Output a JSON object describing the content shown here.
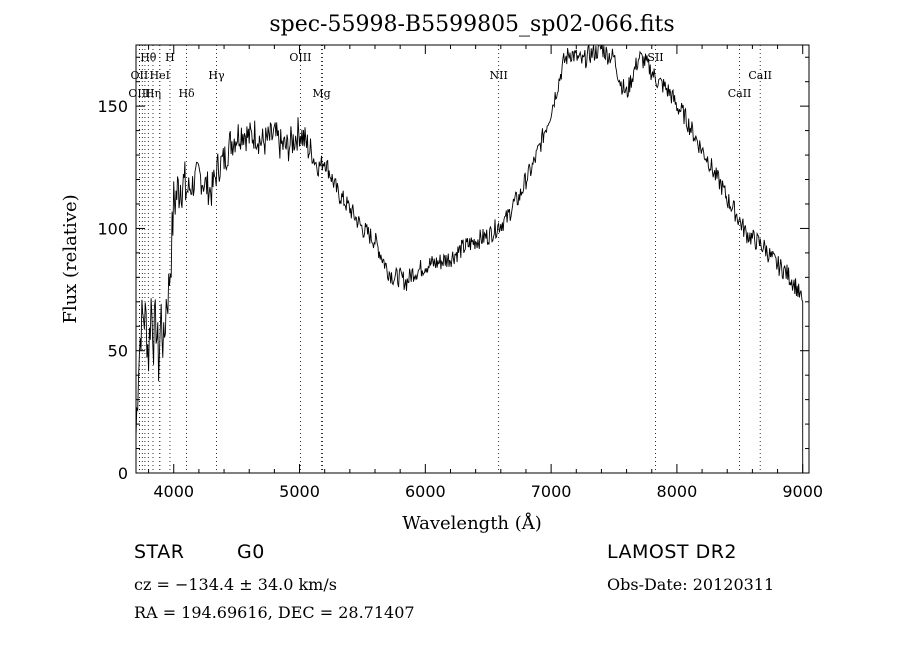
{
  "chart_data": {
    "type": "line",
    "title": "spec-55998-B5599805_sp02-066.fits",
    "xlabel": "Wavelength (Å)",
    "ylabel": "Flux (relative)",
    "xlim": [
      3700,
      9050
    ],
    "ylim": [
      0,
      175
    ],
    "xticks": [
      4000,
      5000,
      6000,
      7000,
      8000,
      9000
    ],
    "yticks": [
      0,
      50,
      100,
      150
    ],
    "grid": false,
    "series": [
      {
        "x": [
          3700,
          3720,
          3740,
          3760,
          3780,
          3800,
          3820,
          3840,
          3860,
          3880,
          3900,
          3920,
          3940,
          3960,
          3980,
          4000,
          4030,
          4060,
          4100,
          4150,
          4200,
          4250,
          4300,
          4350,
          4400,
          4450,
          4500,
          4550,
          4600,
          4650,
          4700,
          4750,
          4800,
          4850,
          4900,
          4950,
          5000,
          5050,
          5100,
          5150,
          5200,
          5300,
          5400,
          5500,
          5600,
          5700,
          5750,
          5800,
          5850,
          5900,
          5950,
          6000,
          6100,
          6200,
          6300,
          6400,
          6500,
          6560,
          6600,
          6650,
          6700,
          6750,
          6800,
          6850,
          6900,
          6950,
          7000,
          7050,
          7100,
          7150,
          7200,
          7250,
          7300,
          7350,
          7400,
          7450,
          7500,
          7550,
          7600,
          7650,
          7700,
          7750,
          7800,
          7850,
          7900,
          7950,
          8000,
          8050,
          8100,
          8150,
          8200,
          8250,
          8300,
          8350,
          8400,
          8450,
          8500,
          8550,
          8600,
          8650,
          8700,
          8750,
          8800,
          8850,
          8900,
          8950,
          8980,
          9000
        ],
        "y": [
          15,
          45,
          60,
          65,
          62,
          48,
          70,
          55,
          62,
          45,
          65,
          50,
          70,
          75,
          90,
          110,
          115,
          120,
          115,
          118,
          122,
          118,
          115,
          125,
          128,
          135,
          138,
          140,
          137,
          139,
          135,
          136,
          138,
          134,
          133,
          136,
          140,
          135,
          130,
          125,
          128,
          115,
          108,
          100,
          95,
          83,
          80,
          80,
          78,
          82,
          83,
          85,
          86,
          88,
          92,
          95,
          97,
          100,
          102,
          104,
          110,
          113,
          120,
          125,
          132,
          140,
          148,
          158,
          168,
          172,
          170,
          168,
          171,
          172,
          174,
          171,
          170,
          160,
          155,
          163,
          170,
          168,
          164,
          160,
          158,
          155,
          150,
          147,
          142,
          137,
          132,
          128,
          122,
          118,
          112,
          108,
          103,
          98,
          96,
          94,
          92,
          88,
          85,
          83,
          80,
          76,
          72,
          70
        ]
      }
    ],
    "lines": [
      {
        "label": "Hθ",
        "x": 3798,
        "row": 0
      },
      {
        "label": "H",
        "x": 3970,
        "row": 0
      },
      {
        "label": "OIII",
        "x": 5007,
        "row": 0
      },
      {
        "label": "SII",
        "x": 7830,
        "row": 0
      },
      {
        "label": "OII",
        "x": 3727,
        "row": 1
      },
      {
        "label": "HeI",
        "x": 3889,
        "row": 1
      },
      {
        "label": "Hγ",
        "x": 4340,
        "row": 1
      },
      {
        "label": "NII",
        "x": 6583,
        "row": 1
      },
      {
        "label": "CaII",
        "x": 8662,
        "row": 1
      },
      {
        "label": "OIII",
        "x": 3727,
        "row": 2
      },
      {
        "label": "Hη",
        "x": 3835,
        "row": 2
      },
      {
        "label": "Hδ",
        "x": 4102,
        "row": 2
      },
      {
        "label": "Mg",
        "x": 5175,
        "row": 2
      },
      {
        "label": "CaII",
        "x": 8498,
        "row": 2
      }
    ],
    "extra_dotted_x": [
      3750,
      3771,
      3889,
      5183
    ]
  },
  "info": {
    "object_type": "STAR",
    "subclass": "G0",
    "survey": "LAMOST DR2",
    "cz": "cz = −134.4 ± 34.0 km/s",
    "obs_date": "Obs-Date: 20120311",
    "coords": "RA = 194.69616, DEC =  28.71407"
  }
}
